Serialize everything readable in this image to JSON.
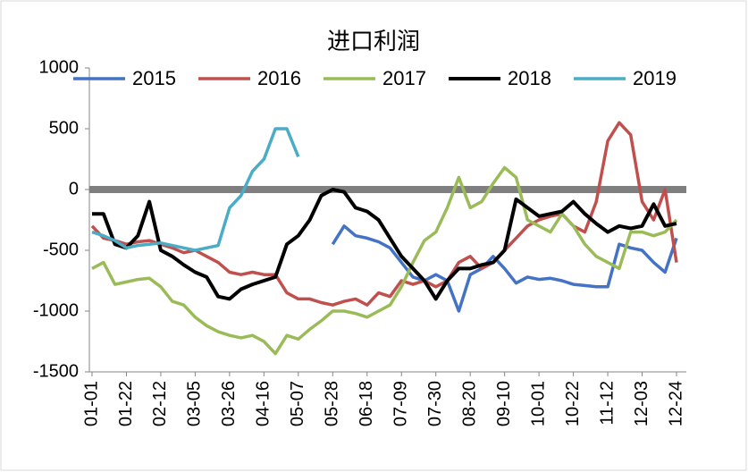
{
  "chart_data": {
    "type": "line",
    "title": "进口利润",
    "categories": [
      "01-01",
      null,
      null,
      "01-22",
      null,
      null,
      "02-12",
      null,
      null,
      "03-05",
      null,
      null,
      "03-26",
      null,
      null,
      "04-16",
      null,
      null,
      "05-07",
      null,
      null,
      "05-28",
      null,
      null,
      "06-18",
      null,
      null,
      "07-09",
      null,
      null,
      "07-30",
      null,
      null,
      "08-20",
      null,
      null,
      "09-10",
      null,
      null,
      "10-01",
      null,
      null,
      "10-22",
      null,
      null,
      "11-12",
      null,
      null,
      "12-03",
      null,
      null,
      "12-24"
    ],
    "series": [
      {
        "name": "2015",
        "color": "#4472c4",
        "values": [
          null,
          null,
          null,
          null,
          null,
          null,
          null,
          null,
          null,
          null,
          null,
          null,
          null,
          null,
          null,
          null,
          null,
          null,
          null,
          null,
          null,
          -450,
          -300,
          -380,
          -400,
          -430,
          -480,
          -600,
          -720,
          -750,
          -700,
          -750,
          -1000,
          -700,
          -650,
          -550,
          -650,
          -770,
          -720,
          -740,
          -730,
          -750,
          -780,
          -790,
          -800,
          -800,
          -450,
          -480,
          -500,
          -600,
          -680,
          -400
        ]
      },
      {
        "name": "2016",
        "color": "#c0504d",
        "values": [
          -300,
          -400,
          -420,
          -450,
          -430,
          -420,
          -450,
          -480,
          -520,
          -500,
          -550,
          -600,
          -680,
          -700,
          -680,
          -700,
          -700,
          -850,
          -900,
          -900,
          -930,
          -950,
          -920,
          -900,
          -950,
          -850,
          -880,
          -750,
          -780,
          -750,
          -800,
          -750,
          -600,
          -550,
          -650,
          -600,
          -500,
          -400,
          -300,
          -250,
          -220,
          -200,
          -300,
          -350,
          -100,
          400,
          550,
          450,
          -100,
          -250,
          0,
          -600
        ]
      },
      {
        "name": "2017",
        "color": "#9bbb59",
        "values": [
          -650,
          -600,
          -780,
          -760,
          -740,
          -730,
          -800,
          -920,
          -950,
          -1050,
          -1120,
          -1170,
          -1200,
          -1220,
          -1200,
          -1250,
          -1350,
          -1200,
          -1230,
          -1150,
          -1080,
          -1000,
          -1000,
          -1020,
          -1050,
          -1000,
          -950,
          -800,
          -600,
          -420,
          -350,
          -150,
          100,
          -150,
          -100,
          50,
          180,
          100,
          -250,
          -300,
          -350,
          -200,
          -300,
          -450,
          -550,
          -600,
          -650,
          -350,
          -350,
          -380,
          -350,
          -250
        ]
      },
      {
        "name": "2018",
        "color": "#000000",
        "values": [
          -200,
          -200,
          -450,
          -480,
          -380,
          -100,
          -500,
          -550,
          -620,
          -680,
          -720,
          -880,
          -900,
          -820,
          -780,
          -750,
          -720,
          -450,
          -380,
          -250,
          -50,
          0,
          -20,
          -150,
          -180,
          -250,
          -400,
          -550,
          -650,
          -750,
          -900,
          -750,
          -650,
          -650,
          -620,
          -600,
          -500,
          -80,
          -150,
          -220,
          -200,
          -180,
          -100,
          -200,
          -280,
          -350,
          -300,
          -320,
          -300,
          -120,
          -300,
          -280
        ]
      },
      {
        "name": "2019",
        "color": "#4bacc6",
        "values": [
          -350,
          -380,
          -420,
          -480,
          -460,
          -450,
          -440,
          -460,
          -480,
          -500,
          -480,
          -460,
          -150,
          -50,
          150,
          250,
          500,
          500,
          270,
          null,
          null,
          null,
          null,
          null,
          null,
          null,
          null,
          null,
          null,
          null,
          null,
          null,
          null,
          null,
          null,
          null,
          null,
          null,
          null,
          null,
          null,
          null,
          null,
          null,
          null,
          null,
          null,
          null,
          null,
          null,
          null,
          null
        ]
      }
    ],
    "ylim": [
      -1500,
      1000
    ],
    "yticks": [
      -1500,
      -1000,
      -500,
      0,
      500,
      1000
    ],
    "zero_line": true,
    "legend_position": "top"
  }
}
